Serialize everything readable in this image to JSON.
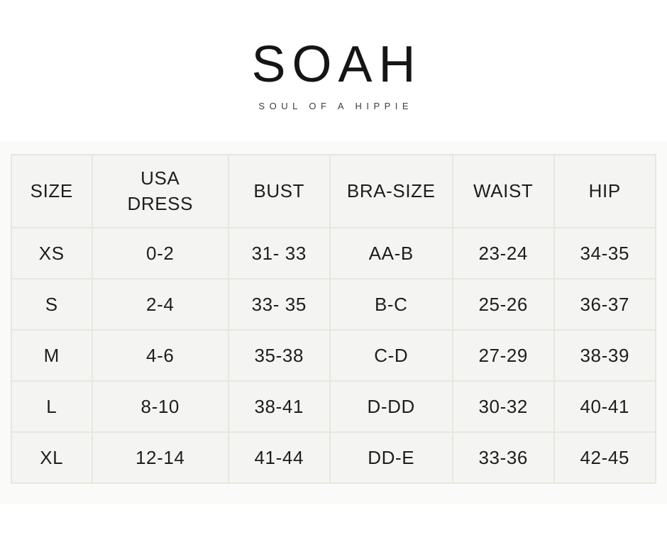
{
  "brand": {
    "logo": "SOAH",
    "tagline": "SOUL OF A HIPPIE"
  },
  "size_chart": {
    "columns": [
      "SIZE",
      "USA\nDRESS",
      "BUST",
      "BRA-SIZE",
      "WAIST",
      "HIP"
    ],
    "rows": [
      [
        "XS",
        "0-2",
        "31- 33",
        "AA-B",
        "23-24",
        "34-35"
      ],
      [
        "S",
        "2-4",
        "33- 35",
        "B-C",
        "25-26",
        "36-37"
      ],
      [
        "M",
        "4-6",
        "35-38",
        "C-D",
        "27-29",
        "38-39"
      ],
      [
        "L",
        "8-10",
        "38-41",
        "D-DD",
        "30-32",
        "40-41"
      ],
      [
        "XL",
        "12-14",
        "41-44",
        "DD-E",
        "33-36",
        "42-45"
      ]
    ]
  },
  "colors": {
    "cell_background": "#f4f4f2",
    "grid_line": "#e9e6dd",
    "band_background": "#fafaf9",
    "text": "#1e1e1e"
  }
}
